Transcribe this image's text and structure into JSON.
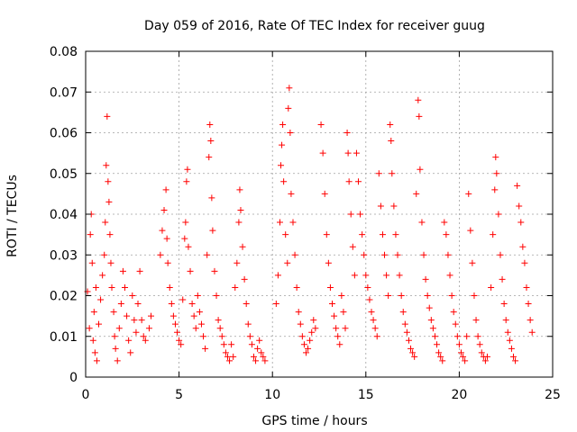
{
  "chart_data": {
    "type": "scatter",
    "title": "Day 059 of 2016, Rate Of TEC Index for receiver guug",
    "xlabel": "GPS time / hours",
    "ylabel": "ROTI / TECUs",
    "xlim": [
      0,
      25
    ],
    "ylim": [
      0,
      0.08
    ],
    "x_ticks": [
      "0",
      "5",
      "10",
      "15",
      "20",
      "25"
    ],
    "y_ticks": [
      "0",
      "0.01",
      "0.02",
      "0.03",
      "0.04",
      "0.05",
      "0.06",
      "0.07",
      "0.08"
    ],
    "grid": true,
    "marker": "+",
    "color": "#ff0000",
    "series": [
      {
        "values_note": "",
        "points": [
          [
            0.1,
            0.021
          ],
          [
            0.2,
            0.012
          ],
          [
            0.25,
            0.035
          ],
          [
            0.3,
            0.04
          ],
          [
            0.35,
            0.028
          ],
          [
            0.4,
            0.009
          ],
          [
            0.45,
            0.016
          ],
          [
            0.5,
            0.006
          ],
          [
            0.55,
            0.022
          ],
          [
            0.6,
            0.004
          ],
          [
            0.7,
            0.013
          ],
          [
            0.8,
            0.019
          ],
          [
            0.9,
            0.025
          ],
          [
            1.0,
            0.03
          ],
          [
            1.05,
            0.038
          ],
          [
            1.1,
            0.052
          ],
          [
            1.15,
            0.064
          ],
          [
            1.2,
            0.048
          ],
          [
            1.25,
            0.043
          ],
          [
            1.3,
            0.035
          ],
          [
            1.35,
            0.028
          ],
          [
            1.4,
            0.022
          ],
          [
            1.5,
            0.016
          ],
          [
            1.55,
            0.01
          ],
          [
            1.6,
            0.007
          ],
          [
            1.7,
            0.004
          ],
          [
            1.8,
            0.012
          ],
          [
            1.9,
            0.018
          ],
          [
            2.0,
            0.026
          ],
          [
            2.1,
            0.022
          ],
          [
            2.2,
            0.015
          ],
          [
            2.3,
            0.009
          ],
          [
            2.4,
            0.006
          ],
          [
            2.5,
            0.02
          ],
          [
            2.6,
            0.014
          ],
          [
            2.7,
            0.011
          ],
          [
            2.8,
            0.018
          ],
          [
            2.9,
            0.026
          ],
          [
            3.0,
            0.014
          ],
          [
            3.1,
            0.01
          ],
          [
            3.2,
            0.009
          ],
          [
            3.4,
            0.012
          ],
          [
            3.5,
            0.015
          ],
          [
            4.0,
            0.03
          ],
          [
            4.1,
            0.036
          ],
          [
            4.2,
            0.041
          ],
          [
            4.3,
            0.046
          ],
          [
            4.35,
            0.034
          ],
          [
            4.4,
            0.028
          ],
          [
            4.5,
            0.022
          ],
          [
            4.6,
            0.018
          ],
          [
            4.7,
            0.015
          ],
          [
            4.8,
            0.013
          ],
          [
            4.9,
            0.011
          ],
          [
            5.0,
            0.009
          ],
          [
            5.1,
            0.008
          ],
          [
            5.2,
            0.019
          ],
          [
            5.3,
            0.034
          ],
          [
            5.35,
            0.038
          ],
          [
            5.4,
            0.048
          ],
          [
            5.45,
            0.051
          ],
          [
            5.5,
            0.032
          ],
          [
            5.6,
            0.026
          ],
          [
            5.7,
            0.018
          ],
          [
            5.8,
            0.015
          ],
          [
            5.9,
            0.012
          ],
          [
            6.0,
            0.02
          ],
          [
            6.1,
            0.016
          ],
          [
            6.2,
            0.013
          ],
          [
            6.3,
            0.01
          ],
          [
            6.4,
            0.007
          ],
          [
            6.5,
            0.03
          ],
          [
            6.6,
            0.054
          ],
          [
            6.65,
            0.062
          ],
          [
            6.7,
            0.058
          ],
          [
            6.75,
            0.044
          ],
          [
            6.8,
            0.036
          ],
          [
            6.9,
            0.026
          ],
          [
            7.0,
            0.02
          ],
          [
            7.1,
            0.014
          ],
          [
            7.2,
            0.012
          ],
          [
            7.3,
            0.01
          ],
          [
            7.4,
            0.008
          ],
          [
            7.5,
            0.006
          ],
          [
            7.6,
            0.005
          ],
          [
            7.7,
            0.004
          ],
          [
            7.8,
            0.008
          ],
          [
            7.9,
            0.005
          ],
          [
            8.0,
            0.022
          ],
          [
            8.1,
            0.028
          ],
          [
            8.2,
            0.038
          ],
          [
            8.25,
            0.046
          ],
          [
            8.3,
            0.041
          ],
          [
            8.4,
            0.032
          ],
          [
            8.5,
            0.024
          ],
          [
            8.6,
            0.018
          ],
          [
            8.7,
            0.013
          ],
          [
            8.8,
            0.01
          ],
          [
            8.9,
            0.008
          ],
          [
            9.0,
            0.005
          ],
          [
            9.1,
            0.004
          ],
          [
            9.2,
            0.007
          ],
          [
            9.3,
            0.009
          ],
          [
            9.4,
            0.006
          ],
          [
            9.5,
            0.005
          ],
          [
            9.6,
            0.004
          ],
          [
            10.2,
            0.018
          ],
          [
            10.3,
            0.025
          ],
          [
            10.4,
            0.038
          ],
          [
            10.45,
            0.052
          ],
          [
            10.5,
            0.057
          ],
          [
            10.55,
            0.062
          ],
          [
            10.6,
            0.048
          ],
          [
            10.7,
            0.035
          ],
          [
            10.8,
            0.028
          ],
          [
            10.85,
            0.066
          ],
          [
            10.9,
            0.071
          ],
          [
            10.95,
            0.06
          ],
          [
            11.0,
            0.045
          ],
          [
            11.1,
            0.038
          ],
          [
            11.2,
            0.03
          ],
          [
            11.3,
            0.022
          ],
          [
            11.4,
            0.016
          ],
          [
            11.5,
            0.013
          ],
          [
            11.6,
            0.01
          ],
          [
            11.7,
            0.008
          ],
          [
            11.8,
            0.006
          ],
          [
            11.9,
            0.007
          ],
          [
            12.0,
            0.009
          ],
          [
            12.1,
            0.011
          ],
          [
            12.2,
            0.014
          ],
          [
            12.3,
            0.012
          ],
          [
            12.6,
            0.062
          ],
          [
            12.7,
            0.055
          ],
          [
            12.8,
            0.045
          ],
          [
            12.9,
            0.035
          ],
          [
            13.0,
            0.028
          ],
          [
            13.1,
            0.022
          ],
          [
            13.2,
            0.018
          ],
          [
            13.3,
            0.015
          ],
          [
            13.4,
            0.012
          ],
          [
            13.5,
            0.01
          ],
          [
            13.6,
            0.008
          ],
          [
            13.7,
            0.02
          ],
          [
            13.8,
            0.016
          ],
          [
            13.9,
            0.012
          ],
          [
            14.0,
            0.06
          ],
          [
            14.05,
            0.055
          ],
          [
            14.1,
            0.048
          ],
          [
            14.2,
            0.04
          ],
          [
            14.3,
            0.032
          ],
          [
            14.4,
            0.025
          ],
          [
            14.5,
            0.055
          ],
          [
            14.6,
            0.048
          ],
          [
            14.7,
            0.04
          ],
          [
            14.8,
            0.035
          ],
          [
            14.9,
            0.03
          ],
          [
            15.0,
            0.025
          ],
          [
            15.1,
            0.022
          ],
          [
            15.2,
            0.019
          ],
          [
            15.3,
            0.016
          ],
          [
            15.4,
            0.014
          ],
          [
            15.5,
            0.012
          ],
          [
            15.6,
            0.01
          ],
          [
            15.7,
            0.05
          ],
          [
            15.8,
            0.042
          ],
          [
            15.9,
            0.035
          ],
          [
            16.0,
            0.03
          ],
          [
            16.1,
            0.025
          ],
          [
            16.2,
            0.02
          ],
          [
            16.3,
            0.062
          ],
          [
            16.35,
            0.058
          ],
          [
            16.4,
            0.05
          ],
          [
            16.5,
            0.042
          ],
          [
            16.6,
            0.035
          ],
          [
            16.7,
            0.03
          ],
          [
            16.8,
            0.025
          ],
          [
            16.9,
            0.02
          ],
          [
            17.0,
            0.016
          ],
          [
            17.1,
            0.013
          ],
          [
            17.2,
            0.011
          ],
          [
            17.3,
            0.009
          ],
          [
            17.4,
            0.007
          ],
          [
            17.5,
            0.006
          ],
          [
            17.6,
            0.005
          ],
          [
            17.7,
            0.045
          ],
          [
            17.8,
            0.068
          ],
          [
            17.85,
            0.064
          ],
          [
            17.9,
            0.051
          ],
          [
            18.0,
            0.038
          ],
          [
            18.1,
            0.03
          ],
          [
            18.2,
            0.024
          ],
          [
            18.3,
            0.02
          ],
          [
            18.4,
            0.017
          ],
          [
            18.5,
            0.014
          ],
          [
            18.6,
            0.012
          ],
          [
            18.7,
            0.01
          ],
          [
            18.8,
            0.008
          ],
          [
            18.9,
            0.006
          ],
          [
            19.0,
            0.005
          ],
          [
            19.1,
            0.004
          ],
          [
            19.2,
            0.038
          ],
          [
            19.3,
            0.035
          ],
          [
            19.4,
            0.03
          ],
          [
            19.5,
            0.025
          ],
          [
            19.6,
            0.02
          ],
          [
            19.7,
            0.016
          ],
          [
            19.8,
            0.013
          ],
          [
            19.9,
            0.01
          ],
          [
            20.0,
            0.008
          ],
          [
            20.1,
            0.006
          ],
          [
            20.2,
            0.005
          ],
          [
            20.3,
            0.004
          ],
          [
            20.4,
            0.01
          ],
          [
            20.5,
            0.045
          ],
          [
            20.6,
            0.036
          ],
          [
            20.7,
            0.028
          ],
          [
            20.8,
            0.02
          ],
          [
            20.9,
            0.014
          ],
          [
            21.0,
            0.01
          ],
          [
            21.1,
            0.008
          ],
          [
            21.2,
            0.006
          ],
          [
            21.3,
            0.005
          ],
          [
            21.4,
            0.004
          ],
          [
            21.5,
            0.005
          ],
          [
            21.7,
            0.022
          ],
          [
            21.8,
            0.035
          ],
          [
            21.9,
            0.046
          ],
          [
            21.95,
            0.054
          ],
          [
            22.0,
            0.05
          ],
          [
            22.1,
            0.04
          ],
          [
            22.2,
            0.03
          ],
          [
            22.3,
            0.024
          ],
          [
            22.4,
            0.018
          ],
          [
            22.5,
            0.014
          ],
          [
            22.6,
            0.011
          ],
          [
            22.7,
            0.009
          ],
          [
            22.8,
            0.007
          ],
          [
            22.9,
            0.005
          ],
          [
            23.0,
            0.004
          ],
          [
            23.1,
            0.047
          ],
          [
            23.2,
            0.042
          ],
          [
            23.3,
            0.038
          ],
          [
            23.4,
            0.032
          ],
          [
            23.5,
            0.028
          ],
          [
            23.6,
            0.022
          ],
          [
            23.7,
            0.018
          ],
          [
            23.8,
            0.014
          ],
          [
            23.9,
            0.011
          ]
        ]
      }
    ]
  }
}
